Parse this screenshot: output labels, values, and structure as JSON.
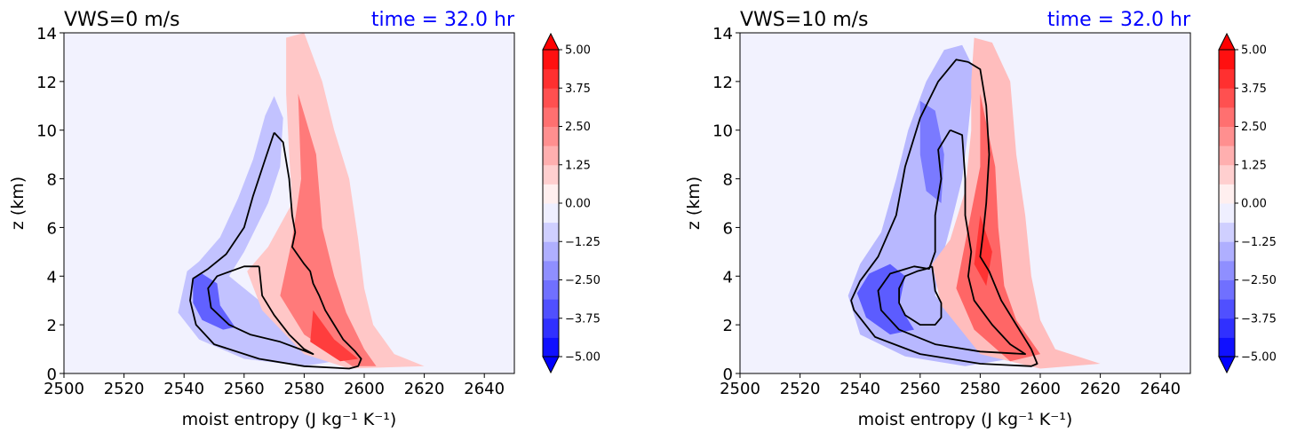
{
  "figure": {
    "colorbar": {
      "levels": [
        -5.0,
        5.0
      ],
      "step": 0.625,
      "tick_labels": [
        "5.00",
        "3.75",
        "2.50",
        "1.25",
        "0.00",
        "−1.25",
        "−2.50",
        "−3.75",
        "−5.00"
      ],
      "colormap": "bwr",
      "extend": "both"
    },
    "title_right_color": "#0000ff"
  },
  "chart_data": [
    {
      "type": "contourf",
      "title": "VWS=0 m/s",
      "title_right": "time = 32.0 hr",
      "xlabel": "moist entropy (J kg⁻¹ K⁻¹)",
      "ylabel": "z (km)",
      "xlim": [
        2500,
        2650
      ],
      "ylim": [
        0,
        14
      ],
      "xticks": [
        "2500",
        "2520",
        "2540",
        "2560",
        "2580",
        "2600",
        "2620",
        "2640"
      ],
      "yticks": [
        "0",
        "2",
        "4",
        "6",
        "8",
        "10",
        "12",
        "14"
      ],
      "background_value": 0,
      "filled_regions": [
        {
          "name": "negative",
          "value": -1.2,
          "points": [
            [
              2541,
              4.2
            ],
            [
              2545,
              4.6
            ],
            [
              2552,
              5.6
            ],
            [
              2558,
              7.2
            ],
            [
              2563,
              8.8
            ],
            [
              2567,
              10.6
            ],
            [
              2570,
              11.4
            ],
            [
              2573,
              10.5
            ],
            [
              2572,
              8.5
            ],
            [
              2568,
              7.0
            ],
            [
              2560,
              5.0
            ],
            [
              2555,
              4.0
            ],
            [
              2570,
              2.5
            ],
            [
              2590,
              0.5
            ],
            [
              2580,
              0.3
            ],
            [
              2560,
              0.6
            ],
            [
              2545,
              1.4
            ],
            [
              2538,
              2.5
            ]
          ]
        },
        {
          "name": "negative-core",
          "value": -3.1,
          "points": [
            [
              2543,
              3.9
            ],
            [
              2546,
              4.1
            ],
            [
              2551,
              3.7
            ],
            [
              2552,
              2.8
            ],
            [
              2557,
              1.9
            ],
            [
              2553,
              1.8
            ],
            [
              2546,
              2.2
            ],
            [
              2543,
              2.9
            ]
          ]
        },
        {
          "name": "positive",
          "value": 1.1,
          "points": [
            [
              2574,
              13.8
            ],
            [
              2580,
              14.0
            ],
            [
              2586,
              12.0
            ],
            [
              2590,
              10.0
            ],
            [
              2595,
              8.0
            ],
            [
              2598,
              5.5
            ],
            [
              2600,
              3.5
            ],
            [
              2603,
              2.0
            ],
            [
              2610,
              0.8
            ],
            [
              2620,
              0.3
            ],
            [
              2595,
              0.2
            ],
            [
              2580,
              0.8
            ],
            [
              2566,
              2.6
            ],
            [
              2561,
              4.2
            ],
            [
              2568,
              5.2
            ],
            [
              2576,
              7.0
            ],
            [
              2575,
              9.0
            ],
            [
              2574,
              11.5
            ]
          ]
        },
        {
          "name": "positive-core",
          "value": 2.6,
          "points": [
            [
              2578,
              11.5
            ],
            [
              2584,
              9.0
            ],
            [
              2586,
              6.0
            ],
            [
              2590,
              4.0
            ],
            [
              2594,
              2.5
            ],
            [
              2600,
              1.0
            ],
            [
              2604,
              0.3
            ],
            [
              2596,
              0.3
            ],
            [
              2580,
              1.6
            ],
            [
              2572,
              3.2
            ],
            [
              2576,
              5.5
            ],
            [
              2579,
              8.0
            ]
          ]
        },
        {
          "name": "positive-max",
          "value": 3.8,
          "points": [
            [
              2583,
              2.6
            ],
            [
              2590,
              1.4
            ],
            [
              2598,
              0.6
            ],
            [
              2592,
              0.5
            ],
            [
              2582,
              1.3
            ]
          ]
        }
      ],
      "contour_lines": [
        {
          "name": "outer",
          "points": [
            [
              2570,
              9.9
            ],
            [
              2573,
              9.5
            ],
            [
              2575,
              8.0
            ],
            [
              2576,
              6.5
            ],
            [
              2577,
              5.8
            ],
            [
              2576,
              5.2
            ],
            [
              2580,
              4.5
            ],
            [
              2582,
              4.2
            ],
            [
              2583,
              3.7
            ],
            [
              2585,
              3.2
            ],
            [
              2587,
              2.6
            ],
            [
              2590,
              2.0
            ],
            [
              2593,
              1.4
            ],
            [
              2597,
              0.9
            ],
            [
              2599,
              0.6
            ],
            [
              2598,
              0.3
            ],
            [
              2595,
              0.2
            ],
            [
              2580,
              0.3
            ],
            [
              2565,
              0.6
            ],
            [
              2550,
              1.2
            ],
            [
              2544,
              2.0
            ],
            [
              2542,
              3.0
            ],
            [
              2543,
              3.9
            ],
            [
              2548,
              4.3
            ],
            [
              2554,
              4.9
            ],
            [
              2560,
              6.0
            ],
            [
              2563,
              7.3
            ],
            [
              2567,
              8.8
            ],
            [
              2570,
              9.9
            ]
          ]
        },
        {
          "name": "inner",
          "points": [
            [
              2565,
              4.4
            ],
            [
              2560,
              4.4
            ],
            [
              2551,
              4.0
            ],
            [
              2548,
              3.5
            ],
            [
              2549,
              2.7
            ],
            [
              2555,
              2.0
            ],
            [
              2562,
              1.6
            ],
            [
              2572,
              1.3
            ],
            [
              2583,
              0.8
            ],
            [
              2580,
              1.0
            ],
            [
              2575,
              1.6
            ],
            [
              2570,
              2.4
            ],
            [
              2566,
              3.2
            ],
            [
              2565,
              4.4
            ]
          ]
        }
      ]
    },
    {
      "type": "contourf",
      "title": "VWS=10 m/s",
      "title_right": "time = 32.0 hr",
      "xlabel": "moist entropy (J kg⁻¹ K⁻¹)",
      "ylabel": "z (km)",
      "xlim": [
        2500,
        2650
      ],
      "ylim": [
        0,
        14
      ],
      "xticks": [
        "2500",
        "2520",
        "2540",
        "2560",
        "2580",
        "2600",
        "2620",
        "2640"
      ],
      "yticks": [
        "0",
        "2",
        "4",
        "6",
        "8",
        "10",
        "12",
        "14"
      ],
      "background_value": 0,
      "filled_regions": [
        {
          "name": "negative",
          "value": -1.4,
          "points": [
            [
              2536,
              3.2
            ],
            [
              2540,
              4.5
            ],
            [
              2547,
              5.8
            ],
            [
              2552,
              8.0
            ],
            [
              2556,
              10.0
            ],
            [
              2562,
              12.0
            ],
            [
              2568,
              13.3
            ],
            [
              2574,
              13.5
            ],
            [
              2578,
              12.5
            ],
            [
              2576,
              10.0
            ],
            [
              2574,
              8.0
            ],
            [
              2570,
              6.0
            ],
            [
              2567,
              4.6
            ],
            [
              2565,
              3.2
            ],
            [
              2570,
              2.5
            ],
            [
              2590,
              0.6
            ],
            [
              2575,
              0.3
            ],
            [
              2555,
              0.7
            ],
            [
              2540,
              1.6
            ]
          ]
        },
        {
          "name": "negative-core",
          "value": -3.2,
          "points": [
            [
              2539,
              3.3
            ],
            [
              2543,
              4.1
            ],
            [
              2550,
              4.5
            ],
            [
              2555,
              4.0
            ],
            [
              2553,
              2.8
            ],
            [
              2558,
              1.8
            ],
            [
              2550,
              1.6
            ],
            [
              2542,
              2.3
            ]
          ]
        },
        {
          "name": "negative-upper",
          "value": -2.6,
          "points": [
            [
              2560,
              11.2
            ],
            [
              2565,
              10.8
            ],
            [
              2568,
              9.0
            ],
            [
              2567,
              7.0
            ],
            [
              2562,
              7.5
            ],
            [
              2560,
              9.0
            ]
          ]
        },
        {
          "name": "positive",
          "value": 1.3,
          "points": [
            [
              2578,
              13.8
            ],
            [
              2584,
              13.6
            ],
            [
              2590,
              12.0
            ],
            [
              2592,
              9.0
            ],
            [
              2595,
              6.5
            ],
            [
              2597,
              4.0
            ],
            [
              2600,
              2.2
            ],
            [
              2605,
              1.0
            ],
            [
              2620,
              0.4
            ],
            [
              2600,
              0.2
            ],
            [
              2580,
              0.8
            ],
            [
              2567,
              2.8
            ],
            [
              2564,
              4.5
            ],
            [
              2570,
              5.5
            ],
            [
              2575,
              7.5
            ],
            [
              2577,
              10.0
            ],
            [
              2577,
              12.0
            ]
          ]
        },
        {
          "name": "positive-core",
          "value": 3.0,
          "points": [
            [
              2580,
              11.5
            ],
            [
              2585,
              8.5
            ],
            [
              2586,
              6.0
            ],
            [
              2588,
              3.6
            ],
            [
              2592,
              2.2
            ],
            [
              2600,
              0.8
            ],
            [
              2590,
              0.5
            ],
            [
              2578,
              1.8
            ],
            [
              2572,
              3.5
            ],
            [
              2576,
              6.0
            ],
            [
              2580,
              8.5
            ]
          ]
        },
        {
          "name": "positive-max",
          "value": 4.0,
          "points": [
            [
              2580,
              6.5
            ],
            [
              2584,
              5.0
            ],
            [
              2582,
              3.6
            ],
            [
              2578,
              4.5
            ]
          ]
        }
      ],
      "contour_lines": [
        {
          "name": "outer",
          "points": [
            [
              2576,
              12.8
            ],
            [
              2580,
              12.5
            ],
            [
              2582,
              11.0
            ],
            [
              2583,
              9.0
            ],
            [
              2582,
              7.0
            ],
            [
              2581,
              5.8
            ],
            [
              2580,
              4.8
            ],
            [
              2583,
              4.2
            ],
            [
              2587,
              3.0
            ],
            [
              2592,
              2.0
            ],
            [
              2597,
              1.0
            ],
            [
              2599,
              0.4
            ],
            [
              2597,
              0.3
            ],
            [
              2580,
              0.4
            ],
            [
              2560,
              0.8
            ],
            [
              2545,
              1.5
            ],
            [
              2538,
              2.6
            ],
            [
              2537,
              3.0
            ],
            [
              2540,
              3.8
            ],
            [
              2546,
              4.8
            ],
            [
              2552,
              6.5
            ],
            [
              2555,
              8.5
            ],
            [
              2560,
              10.5
            ],
            [
              2566,
              12.0
            ],
            [
              2572,
              12.9
            ],
            [
              2576,
              12.8
            ]
          ]
        },
        {
          "name": "middle",
          "points": [
            [
              2570,
              10.0
            ],
            [
              2574,
              9.8
            ],
            [
              2575,
              8.0
            ],
            [
              2575,
              6.5
            ],
            [
              2577,
              5.0
            ],
            [
              2576,
              4.0
            ],
            [
              2578,
              3.0
            ],
            [
              2584,
              2.0
            ],
            [
              2590,
              1.2
            ],
            [
              2595,
              0.8
            ],
            [
              2580,
              0.9
            ],
            [
              2565,
              1.2
            ],
            [
              2553,
              1.8
            ],
            [
              2547,
              2.6
            ],
            [
              2546,
              3.4
            ],
            [
              2550,
              4.1
            ],
            [
              2558,
              4.4
            ],
            [
              2563,
              4.3
            ],
            [
              2565,
              5.0
            ],
            [
              2565,
              6.5
            ],
            [
              2567,
              8.0
            ],
            [
              2566,
              9.2
            ],
            [
              2570,
              10.0
            ]
          ]
        },
        {
          "name": "inner",
          "points": [
            [
              2564,
              4.4
            ],
            [
              2562,
              4.3
            ],
            [
              2559,
              4.2
            ],
            [
              2555,
              4.0
            ],
            [
              2553,
              3.5
            ],
            [
              2553,
              2.9
            ],
            [
              2555,
              2.4
            ],
            [
              2560,
              2.0
            ],
            [
              2565,
              2.0
            ],
            [
              2567,
              2.3
            ],
            [
              2567,
              2.9
            ],
            [
              2565,
              3.4
            ],
            [
              2564,
              4.4
            ]
          ]
        }
      ]
    }
  ]
}
